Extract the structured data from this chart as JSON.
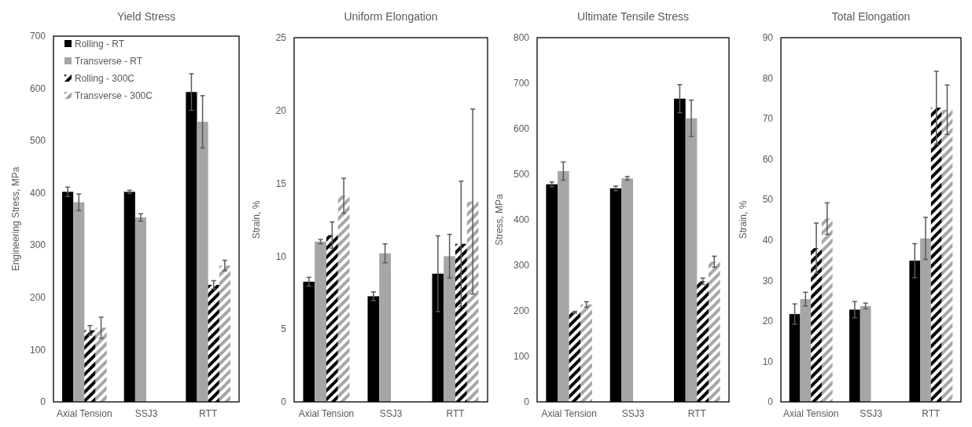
{
  "chart_data": [
    {
      "type": "bar",
      "title": "Yield Stress",
      "ylabel": "Engineering Stress, MPa",
      "categories": [
        "Axial Tension",
        "SSJ3",
        "RTT"
      ],
      "ylim": [
        0,
        700
      ],
      "yticks": [
        0,
        100,
        200,
        300,
        400,
        500,
        600,
        700
      ],
      "legend": "top left",
      "series": [
        {
          "name": "Rolling - RT",
          "color": "#000000",
          "values": [
            402,
            402,
            593
          ],
          "errors": [
            9,
            3,
            35
          ]
        },
        {
          "name": "Transverse - RT",
          "color": "#a6a6a6",
          "values": [
            382,
            353,
            536
          ],
          "errors": [
            16,
            7,
            50
          ]
        },
        {
          "name": "Rolling - 300C",
          "color": "#000000",
          "line_style": "dashed",
          "values": [
            137,
            null,
            224
          ],
          "errors": [
            9,
            null,
            8
          ]
        },
        {
          "name": "Transverse - 300C",
          "color": "#a6a6a6",
          "line_style": "dashed",
          "values": [
            142,
            null,
            261
          ],
          "errors": [
            20,
            null,
            10
          ]
        }
      ]
    },
    {
      "type": "bar",
      "title": "Uniform Elongation",
      "ylabel": "Strain, %",
      "categories": [
        "Axial Tension",
        "SSJ3",
        "RTT"
      ],
      "ylim": [
        0,
        25
      ],
      "yticks": [
        0,
        5,
        10,
        15,
        20,
        25
      ],
      "series": [
        {
          "color": "#000000",
          "values": [
            8.25,
            7.25,
            8.8
          ],
          "errors": [
            0.3,
            0.3,
            2.6
          ]
        },
        {
          "color": "#a6a6a6",
          "values": [
            11.0,
            10.2,
            10.0
          ],
          "errors": [
            0.15,
            0.65,
            1.5
          ]
        },
        {
          "color": "#000000",
          "line_style": "dashed",
          "values": [
            11.45,
            null,
            10.85
          ],
          "errors": [
            0.9,
            null,
            4.3
          ]
        },
        {
          "color": "#a6a6a6",
          "line_style": "dashed",
          "values": [
            14.15,
            null,
            13.75
          ],
          "errors": [
            1.2,
            null,
            6.35
          ]
        }
      ]
    },
    {
      "type": "bar",
      "title": "Ultimate Tensile Stress",
      "ylabel": "Stress, MPa",
      "categories": [
        "Axial Tension",
        "SSJ3",
        "RTT"
      ],
      "ylim": [
        0,
        800
      ],
      "yticks": [
        0,
        100,
        200,
        300,
        400,
        500,
        600,
        700,
        800
      ],
      "series": [
        {
          "color": "#000000",
          "values": [
            478,
            469,
            666
          ],
          "errors": [
            5,
            5,
            31
          ]
        },
        {
          "color": "#a6a6a6",
          "values": [
            507,
            491,
            623
          ],
          "errors": [
            20,
            4,
            40
          ]
        },
        {
          "color": "#000000",
          "line_style": "dashed",
          "values": [
            197,
            null,
            265
          ],
          "errors": [
            2,
            null,
            7
          ]
        },
        {
          "color": "#a6a6a6",
          "line_style": "dashed",
          "values": [
            214,
            null,
            308
          ],
          "errors": [
            6,
            null,
            12
          ]
        }
      ]
    },
    {
      "type": "bar",
      "title": "Total Elongation",
      "ylabel": "Strain, %",
      "categories": [
        "Axial Tension",
        "SSJ3",
        "RTT"
      ],
      "ylim": [
        0,
        90
      ],
      "yticks": [
        0,
        10,
        20,
        30,
        40,
        50,
        60,
        70,
        80,
        90
      ],
      "series": [
        {
          "color": "#000000",
          "values": [
            21.7,
            22.8,
            34.9
          ],
          "errors": [
            2.5,
            2,
            4.2
          ]
        },
        {
          "color": "#a6a6a6",
          "values": [
            25.4,
            23.7,
            40.4
          ],
          "errors": [
            1.7,
            0.7,
            5.2
          ]
        },
        {
          "color": "#000000",
          "line_style": "dashed",
          "values": [
            38,
            null,
            72.7
          ],
          "errors": [
            6.2,
            null,
            9
          ]
        },
        {
          "color": "#a6a6a6",
          "line_style": "dashed",
          "values": [
            45.3,
            null,
            72.2
          ],
          "errors": [
            3.9,
            null,
            6.1
          ]
        }
      ]
    }
  ]
}
